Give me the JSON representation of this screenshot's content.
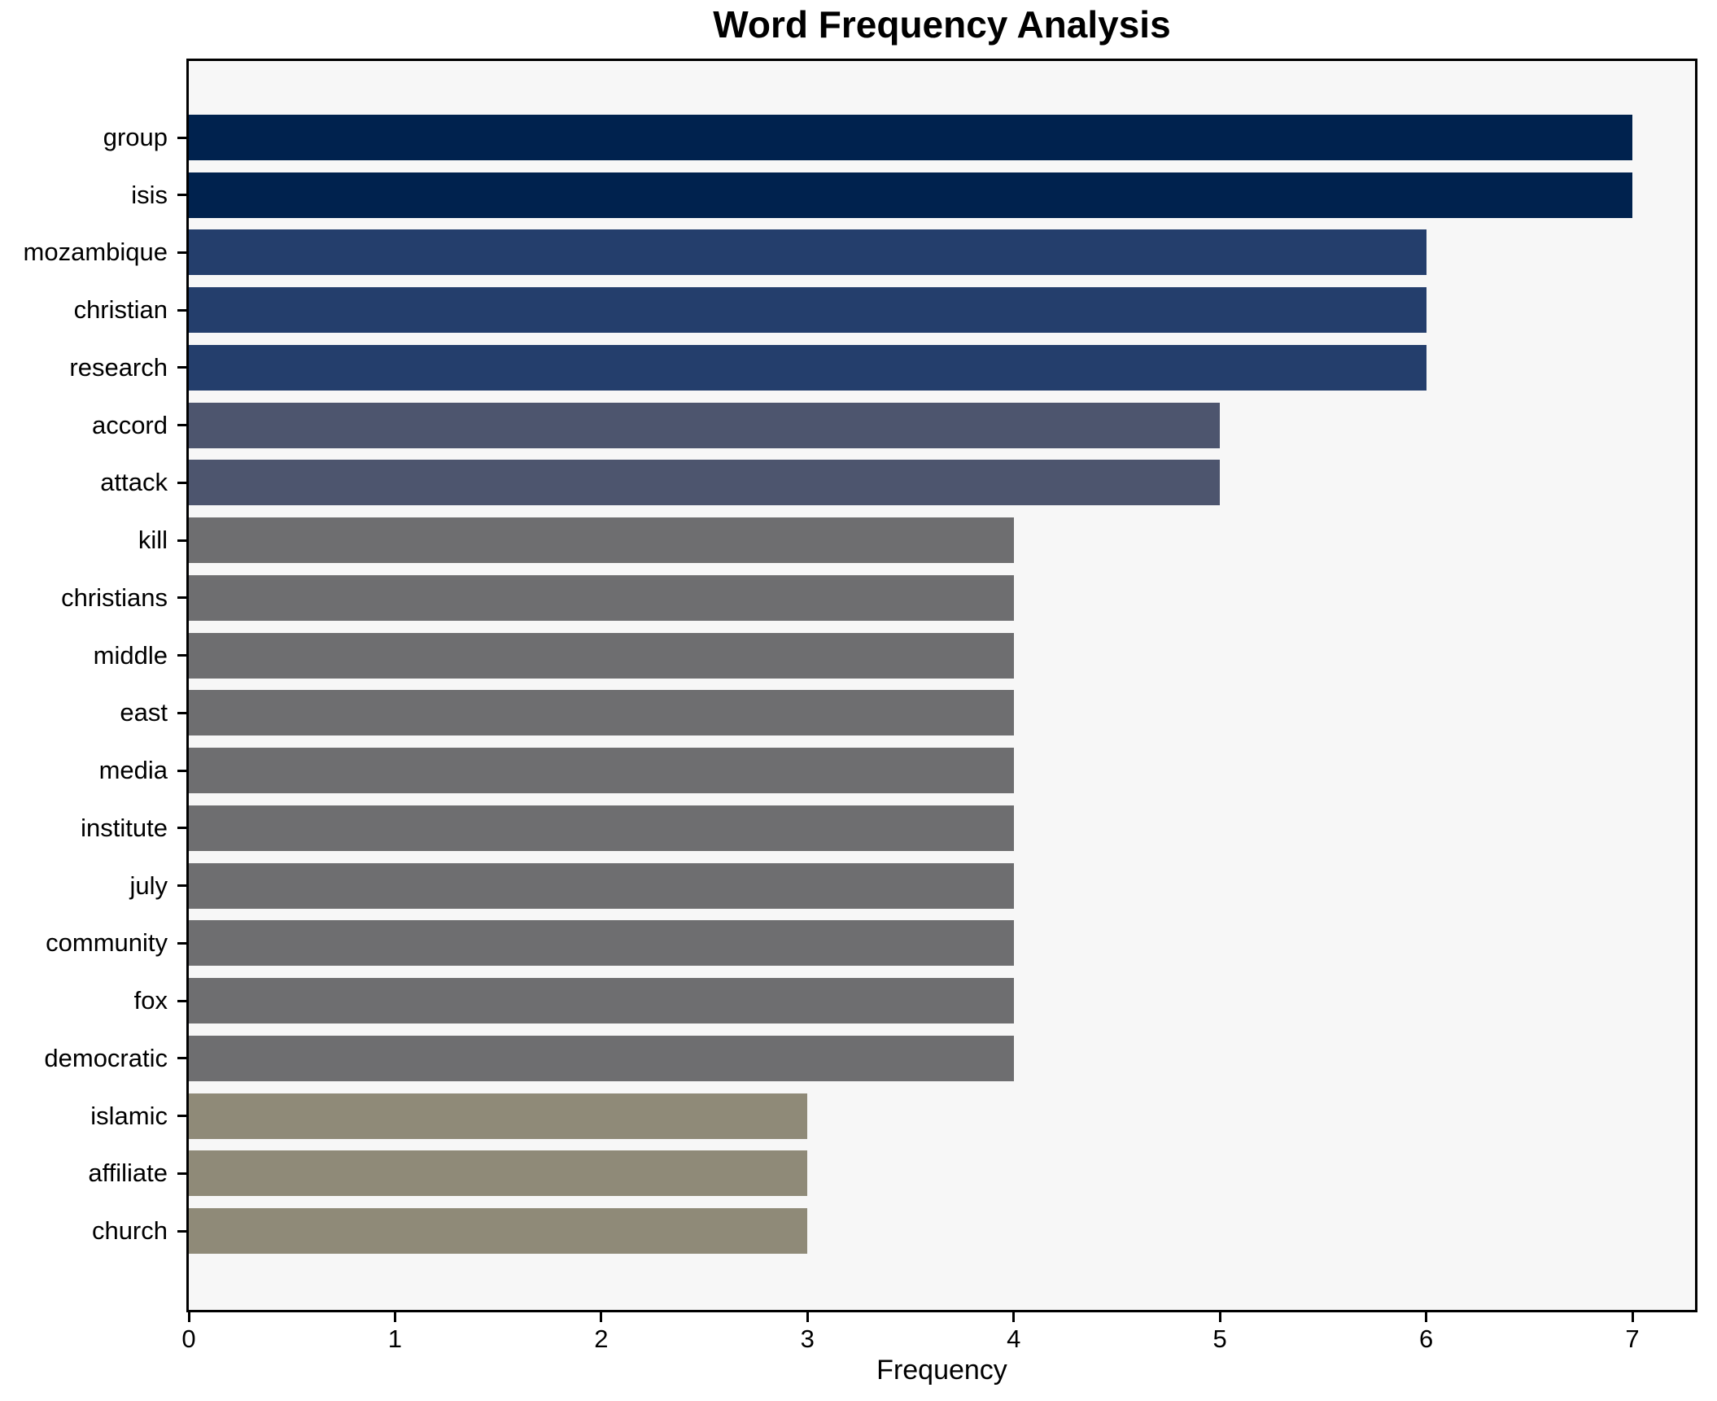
{
  "chart_data": {
    "type": "bar",
    "orientation": "horizontal",
    "title": "Word Frequency Analysis",
    "xlabel": "Frequency",
    "ylabel": "",
    "categories": [
      "group",
      "isis",
      "mozambique",
      "christian",
      "research",
      "accord",
      "attack",
      "kill",
      "christians",
      "middle",
      "east",
      "media",
      "institute",
      "july",
      "community",
      "fox",
      "democratic",
      "islamic",
      "affiliate",
      "church"
    ],
    "values": [
      7,
      7,
      6,
      6,
      6,
      5,
      5,
      4,
      4,
      4,
      4,
      4,
      4,
      4,
      4,
      4,
      4,
      3,
      3,
      3
    ],
    "xticks": [
      0,
      1,
      2,
      3,
      4,
      5,
      6,
      7
    ],
    "xlim": [
      0,
      7.32
    ],
    "grid": false,
    "legend_position": "none",
    "colors_by_value": {
      "7": "#00224e",
      "6": "#243e6c",
      "5": "#4d556e",
      "4": "#6e6e70",
      "3": "#8f8a78"
    },
    "plot_background": "#f7f7f7",
    "figure_background": "#ffffff",
    "spine_color": "#000000"
  }
}
